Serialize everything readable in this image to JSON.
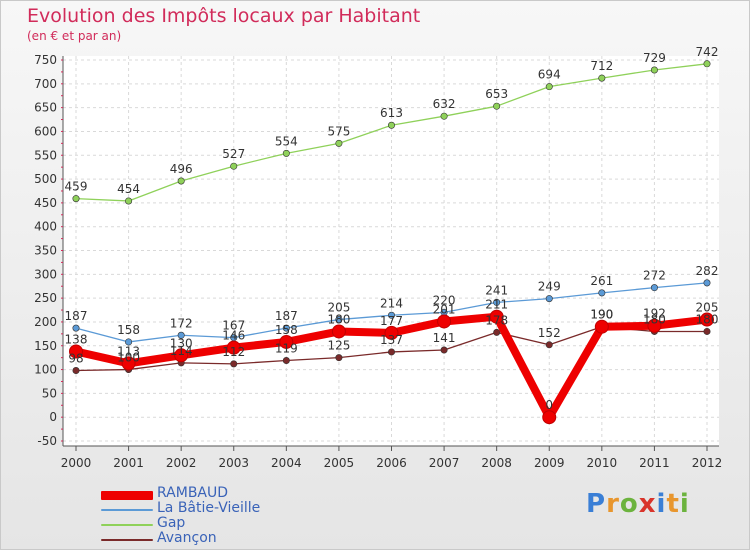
{
  "title": "Evolution des Impôts locaux par Habitant",
  "subtitle": "(en € et par an)",
  "brand": {
    "letters": [
      {
        "ch": "P",
        "color": "#3a7fd6"
      },
      {
        "ch": "r",
        "color": "#e8962e"
      },
      {
        "ch": "o",
        "color": "#6cb33e"
      },
      {
        "ch": "x",
        "color": "#d9342b"
      },
      {
        "ch": "i",
        "color": "#3a7fd6"
      },
      {
        "ch": "t",
        "color": "#e8962e"
      },
      {
        "ch": "i",
        "color": "#6cb33e"
      }
    ]
  },
  "chart_data": {
    "type": "line",
    "x": [
      "2000",
      "2001",
      "2002",
      "2003",
      "2004",
      "2005",
      "2006",
      "2007",
      "2008",
      "2009",
      "2010",
      "2011",
      "2012"
    ],
    "ylim": [
      -50,
      750
    ],
    "yticks": [
      "750",
      "700",
      "650",
      "600",
      "550",
      "500",
      "450",
      "400",
      "350",
      "300",
      "250",
      "200",
      "150",
      "100",
      "50",
      "0",
      "-50"
    ],
    "grid": true,
    "legend_position": "bottom-left",
    "series": [
      {
        "name": "RAMBAUD",
        "color": "#ee0000",
        "values": [
          138,
          113,
          130,
          146,
          158,
          180,
          177,
          201,
          211,
          0,
          190,
          192,
          205
        ],
        "labels": [
          "138",
          "113",
          "130",
          "146",
          "158",
          "180",
          "177",
          "201",
          "211",
          "0",
          "190",
          "192",
          "205"
        ]
      },
      {
        "name": "La Bâtie-Vieille",
        "color": "#5b9ad6",
        "values": [
          187,
          158,
          172,
          167,
          187,
          205,
          214,
          220,
          241,
          249,
          261,
          272,
          282
        ],
        "labels": [
          "187",
          "158",
          "172",
          "167",
          "187",
          "205",
          "214",
          "220",
          "241",
          "249",
          "261",
          "272",
          "282"
        ]
      },
      {
        "name": "Gap",
        "color": "#8fd15a",
        "values": [
          459,
          454,
          496,
          527,
          554,
          575,
          613,
          632,
          653,
          694,
          712,
          729,
          742
        ],
        "labels": [
          "459",
          "454",
          "496",
          "527",
          "554",
          "575",
          "613",
          "632",
          "653",
          "694",
          "712",
          "729",
          "742"
        ]
      },
      {
        "name": "Avançon",
        "color": "#7a2a2a",
        "values": [
          98,
          100,
          114,
          112,
          119,
          125,
          137,
          141,
          178,
          152,
          190,
          180,
          180
        ],
        "labels": [
          "98",
          "100",
          "114",
          "112",
          "119",
          "125",
          "137",
          "141",
          "178",
          "152",
          "190",
          "180",
          "180"
        ]
      }
    ]
  }
}
